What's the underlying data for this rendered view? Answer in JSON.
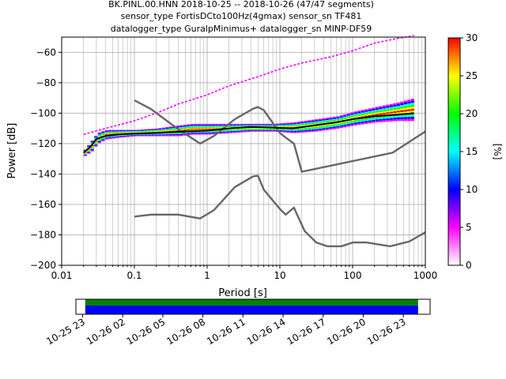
{
  "chart_data": {
    "type": "heatmap",
    "title_lines": [
      "BK.PINL.00.HNN   2018-10-25 -- 2018-10-26  (47/47 segments)",
      "sensor_type FortisDCto100Hz(4gmax) sensor_sn TF481",
      "datalogger_type GuralpMinimus+ datalogger_sn MINP-DF59"
    ],
    "xlabel": "Period [s]",
    "ylabel": "Power [dB]",
    "xscale": "log",
    "xlim": [
      0.01,
      1000
    ],
    "ylim": [
      -200,
      -50
    ],
    "x_ticks": [
      0.01,
      0.1,
      1,
      10,
      100,
      1000
    ],
    "x_tick_labels": [
      "0.01",
      "0.1",
      "1",
      "10",
      "100",
      "1000"
    ],
    "y_ticks": [
      -200,
      -180,
      -160,
      -140,
      -120,
      -100,
      -80,
      -60
    ],
    "y_tick_labels": [
      "−200",
      "−180",
      "−160",
      "−140",
      "−120",
      "−100",
      "−80",
      "−60"
    ],
    "grid": true,
    "colorbar": {
      "label": "[%]",
      "range": [
        0,
        30
      ],
      "ticks": [
        0,
        5,
        10,
        15,
        20,
        25,
        30
      ],
      "tick_labels": [
        "0",
        "5",
        "10",
        "15",
        "20",
        "25",
        "30"
      ],
      "colors": [
        "#ffffff",
        "#ff00ff",
        "#0000ff",
        "#00ffff",
        "#00ff00",
        "#ffff00",
        "#ff0000"
      ]
    },
    "series": [
      {
        "kind": "model",
        "color": "#666666",
        "x": [
          0.1,
          0.17,
          0.4,
          0.8,
          1.24,
          2.4,
          4.3,
          5,
          6,
          10,
          12,
          15.6,
          20,
          354.8,
          1000
        ],
        "y": [
          -91.5,
          -97.4,
          -110.5,
          -120.0,
          -115.0,
          -104.0,
          -97.0,
          -96.0,
          -98.0,
          -113.0,
          -116.0,
          -120.0,
          -138.5,
          -126.0,
          -112.0
        ]
      },
      {
        "kind": "model",
        "color": "#666666",
        "x": [
          0.1,
          0.17,
          0.4,
          0.8,
          1.24,
          2.4,
          4.3,
          5,
          6,
          10,
          12,
          15.6,
          21.9,
          31.6,
          45,
          70,
          101,
          154,
          328,
          600,
          1000
        ],
        "y": [
          -168.0,
          -166.7,
          -166.7,
          -169.2,
          -163.7,
          -148.6,
          -141.5,
          -141.1,
          -150.2,
          -163.0,
          -166.7,
          -162.1,
          -177.5,
          -185.0,
          -187.5,
          -187.5,
          -185.0,
          -185.0,
          -187.5,
          -184.4,
          -178.3
        ]
      },
      {
        "kind": "mode",
        "color": "#000000",
        "x": [
          0.02,
          0.025,
          0.03,
          0.04,
          0.06,
          0.1,
          0.2,
          0.5,
          1,
          2,
          4,
          8,
          15,
          30,
          60,
          100,
          200,
          400,
          700
        ],
        "y": [
          -126,
          -122,
          -117,
          -115,
          -114,
          -113.5,
          -113,
          -112,
          -111.5,
          -110,
          -109,
          -109.5,
          -110,
          -108,
          -106,
          -104,
          -102,
          -101,
          -100
        ]
      },
      {
        "kind": "upper-percentile",
        "color": "#ff00ff",
        "x": [
          0.02,
          0.04,
          0.1,
          0.2,
          0.4,
          1,
          2,
          5,
          10,
          20,
          50,
          100,
          200,
          400,
          700
        ],
        "y": [
          -114,
          -110,
          -105,
          -100,
          -94,
          -88,
          -82,
          -76,
          -71,
          -67,
          -63,
          -59,
          -54,
          -51,
          -49
        ]
      }
    ],
    "band": {
      "x": [
        0.02,
        0.025,
        0.03,
        0.04,
        0.06,
        0.1,
        0.2,
        0.4,
        0.6,
        1,
        2,
        4,
        8,
        15,
        30,
        60,
        100,
        200,
        400,
        700
      ],
      "low": [
        -128,
        -125,
        -120,
        -117,
        -116,
        -115,
        -115,
        -115,
        -114,
        -114,
        -113,
        -112,
        -112,
        -113,
        -112,
        -110,
        -108,
        -106,
        -105,
        -105
      ],
      "high": [
        -124,
        -118,
        -113,
        -111,
        -111,
        -111,
        -110,
        -108,
        -107,
        -107,
        -107,
        -107,
        -107,
        -106,
        -104,
        -102,
        -99,
        -96,
        -93,
        -90
      ]
    },
    "time_axis": {
      "tick_labels": [
        "10-25 23",
        "10-26 02",
        "10-26 05",
        "10-26 08",
        "10-26 11",
        "10-26 14",
        "10-26 17",
        "10-26 20",
        "10-26 23"
      ],
      "start_hour": 22.5,
      "end_hour": 49.0,
      "coverage": [
        23.2,
        48.1
      ],
      "tick_hours": [
        23,
        26,
        29,
        32,
        35,
        38,
        41,
        44,
        47
      ],
      "colors": {
        "data": "#0000ff",
        "gaps": "#008000"
      }
    }
  }
}
